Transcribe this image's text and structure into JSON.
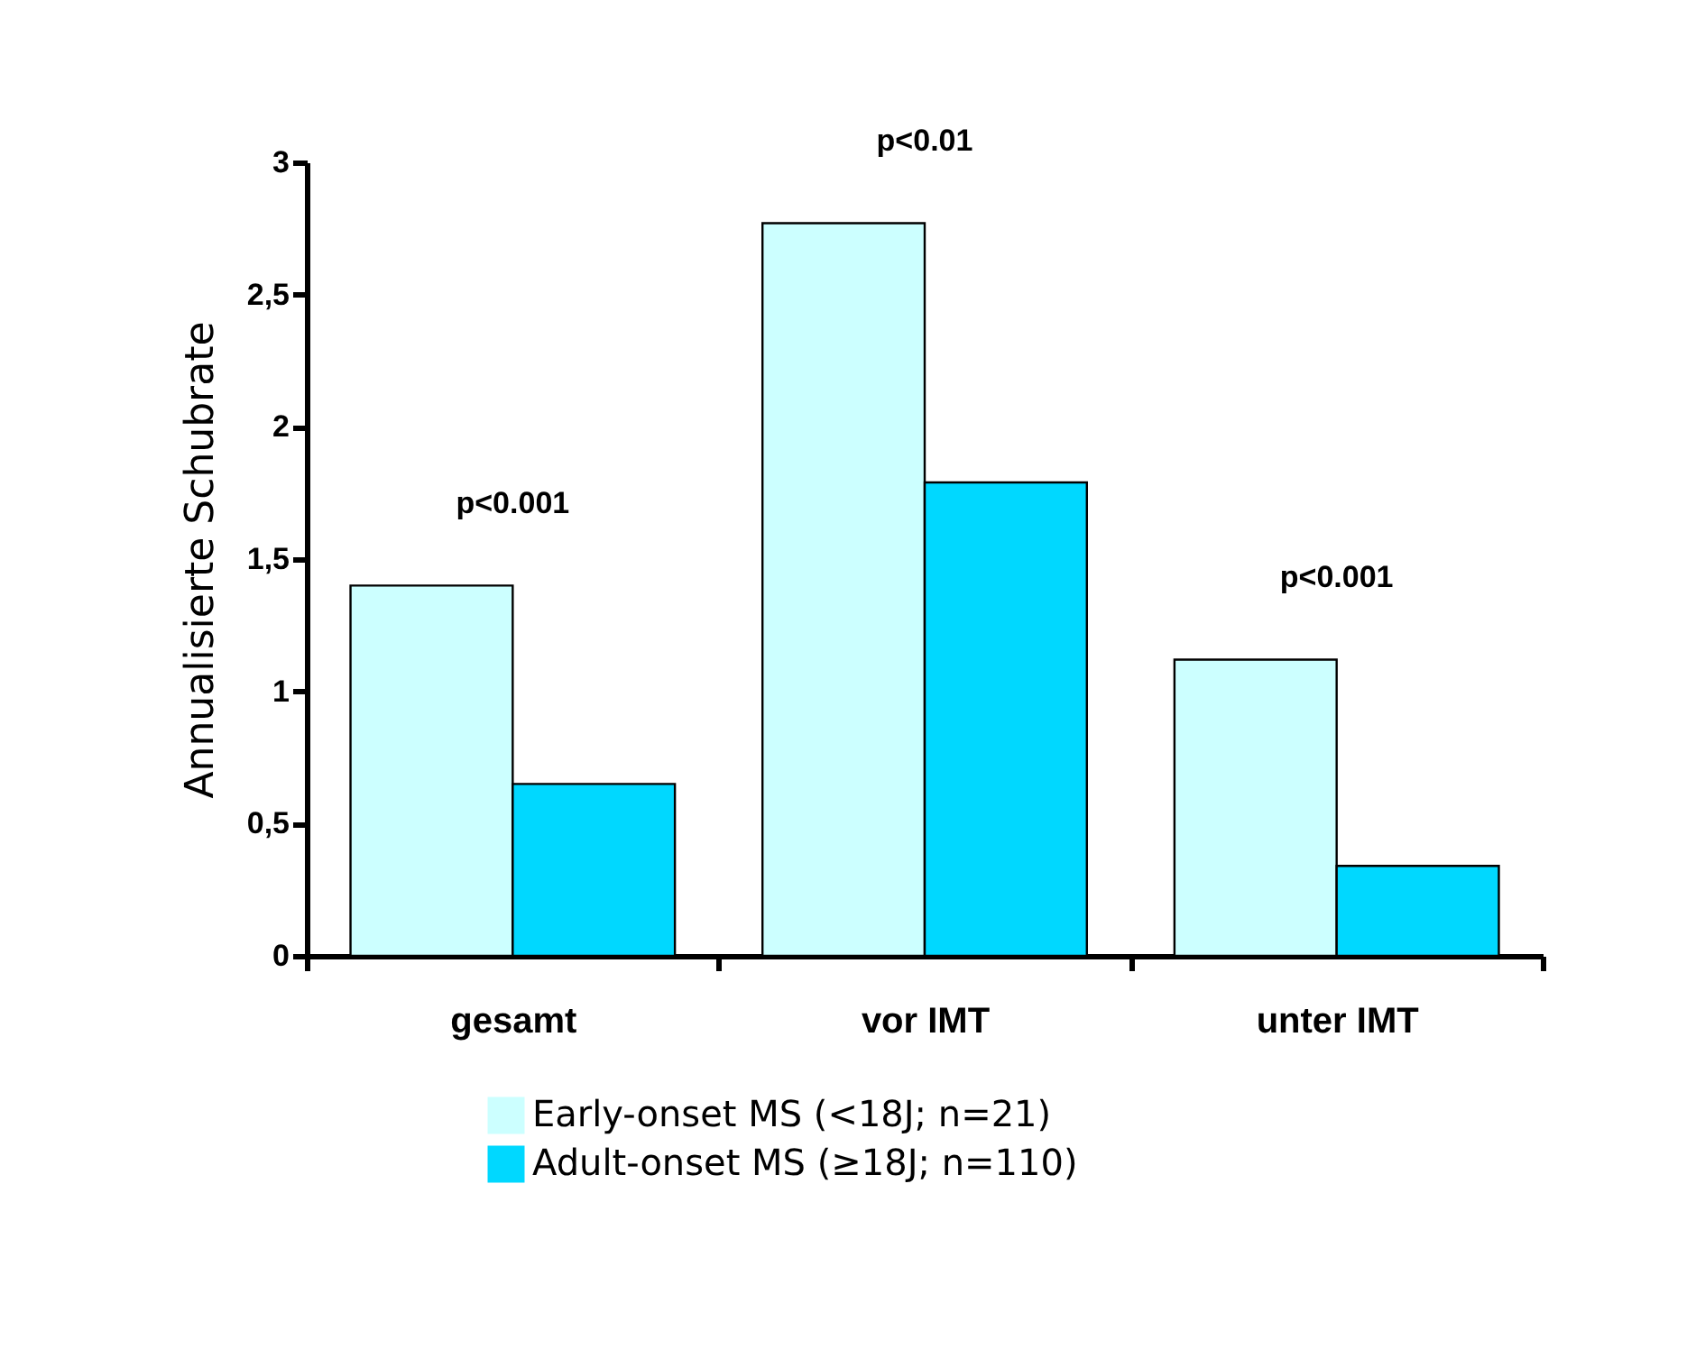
{
  "chart_data": {
    "type": "bar",
    "ylabel": "Annualisierte Schubrate",
    "categories": [
      "gesamt",
      "vor IMT",
      "unter IMT"
    ],
    "series": [
      {
        "name": "Early-onset MS (<18J; n=21)",
        "color": "#ccffff",
        "values": [
          1.4,
          2.77,
          1.12
        ]
      },
      {
        "name": "Adult-onset MS (≥18J; n=110)",
        "color": "#00d8ff",
        "values": [
          0.65,
          1.79,
          0.34
        ]
      }
    ],
    "ylim": [
      0,
      3
    ],
    "yticks": [
      0,
      {
        "value": 0.5,
        "label": "0,5"
      },
      1,
      {
        "value": 1.5,
        "label": "1,5"
      },
      2,
      {
        "value": 2.5,
        "label": "2,5"
      },
      3
    ],
    "annotations": [
      "p<0.001",
      "p<0.01",
      "p<0.001"
    ],
    "grid": false,
    "legend": "bottom"
  }
}
